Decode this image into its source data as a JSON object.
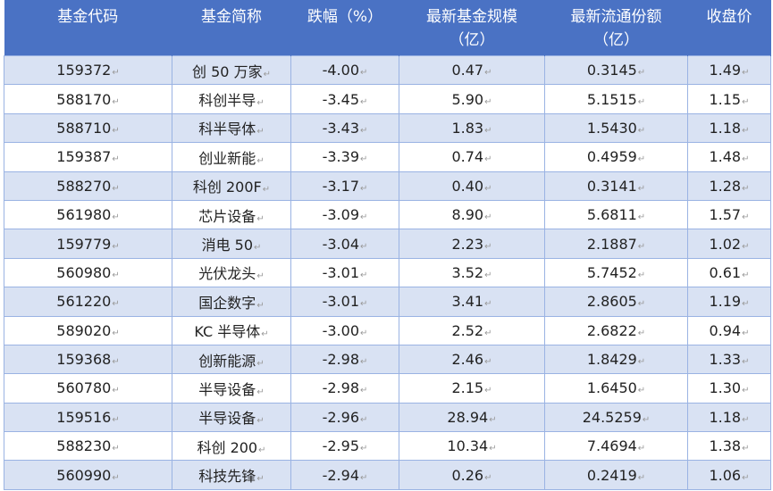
{
  "headers": [
    {
      "line1": "基金代码",
      "line2": ""
    },
    {
      "line1": "基金简称",
      "line2": ""
    },
    {
      "line1": "跌幅（%）",
      "line2": ""
    },
    {
      "line1": "最新基金规模",
      "line2": "（亿）"
    },
    {
      "line1": "最新流通份额",
      "line2": "（亿）"
    },
    {
      "line1": "收盘价",
      "line2": ""
    }
  ],
  "rows": [
    [
      "159372",
      "创 50 万家",
      "-4.00",
      "0.47",
      "0.3145",
      "1.49"
    ],
    [
      "588170",
      "科创半导",
      "-3.45",
      "5.90",
      "5.1515",
      "1.15"
    ],
    [
      "588710",
      "科半导体",
      "-3.43",
      "1.83",
      "1.5430",
      "1.18"
    ],
    [
      "159387",
      "创业新能",
      "-3.39",
      "0.74",
      "0.4959",
      "1.48"
    ],
    [
      "588270",
      "科创 200F",
      "-3.17",
      "0.40",
      "0.3141",
      "1.28"
    ],
    [
      "561980",
      "芯片设备",
      "-3.09",
      "8.90",
      "5.6811",
      "1.57"
    ],
    [
      "159779",
      "消电 50",
      "-3.04",
      "2.23",
      "2.1887",
      "1.02"
    ],
    [
      "560980",
      "光伏龙头",
      "-3.01",
      "3.52",
      "5.7452",
      "0.61"
    ],
    [
      "561220",
      "国企数字",
      "-3.01",
      "3.41",
      "2.8605",
      "1.19"
    ],
    [
      "589020",
      "KC 半导体",
      "-3.00",
      "2.52",
      "2.6822",
      "0.94"
    ],
    [
      "159368",
      "创新能源",
      "-2.98",
      "2.46",
      "1.8429",
      "1.33"
    ],
    [
      "560780",
      "半导设备",
      "-2.98",
      "2.15",
      "1.6450",
      "1.30"
    ],
    [
      "159516",
      "半导设备",
      "-2.96",
      "28.94",
      "24.5259",
      "1.18"
    ],
    [
      "588230",
      "科创 200",
      "-2.95",
      "10.34",
      "7.4694",
      "1.38"
    ],
    [
      "560990",
      "科技先锋",
      "-2.94",
      "0.26",
      "0.2419",
      "1.06"
    ]
  ],
  "cell_marker": "↵"
}
